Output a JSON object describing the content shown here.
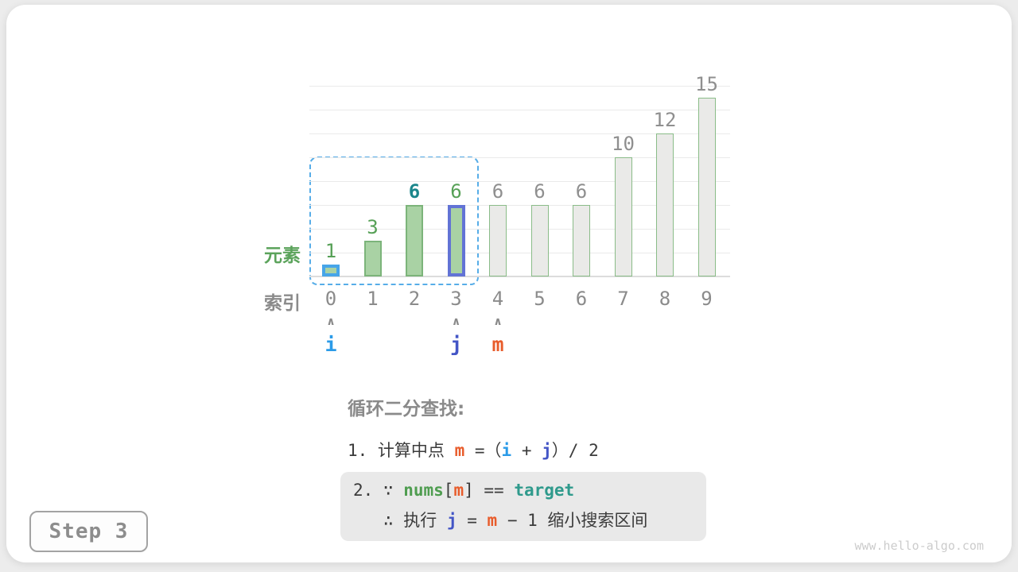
{
  "page": {
    "background_color": "#ececec",
    "card_color": "#ffffff",
    "step_badge": "Step 3",
    "watermark": "www.hello-algo.com"
  },
  "chart_data": {
    "type": "bar",
    "title": "",
    "categories": [
      "0",
      "1",
      "2",
      "3",
      "4",
      "5",
      "6",
      "7",
      "8",
      "9"
    ],
    "values": [
      1,
      3,
      6,
      6,
      6,
      6,
      6,
      10,
      12,
      15
    ],
    "bar_styles": [
      "hl-i",
      "",
      "",
      "hl-j",
      "gray",
      "gray",
      "gray",
      "gray",
      "gray",
      "gray"
    ],
    "value_label_styles": [
      "green",
      "green",
      "teal",
      "green",
      "",
      "",
      "",
      "",
      "",
      ""
    ],
    "row_label_elements": "元素",
    "row_label_index": "索引",
    "ylim": [
      0,
      16
    ],
    "gridline_step": 2,
    "grid": true,
    "legend": false,
    "search_range": {
      "from_index": 0,
      "to_index": 3,
      "style": "dashed-blue-rounded"
    }
  },
  "pointers": {
    "caret": "∧",
    "items": [
      {
        "label": "i",
        "index": 0,
        "color": "#2b9be8"
      },
      {
        "label": "j",
        "index": 3,
        "color": "#4355c6"
      },
      {
        "label": "m",
        "index": 4,
        "color": "#e85c2b"
      }
    ]
  },
  "annotation": {
    "heading": "循环二分查找:",
    "step1": {
      "prefix": "1. 计算中点 ",
      "m": "m",
      "eq_open": " =（",
      "i": "i",
      "plus": " + ",
      "j": "j",
      "close": "）/ 2"
    },
    "step2": {
      "line1": {
        "prefix": "2. ∵ ",
        "nums": "nums",
        "bracket_open": "[",
        "m": "m",
        "bracket_close": "] == ",
        "target": "target"
      },
      "line2": {
        "prefix": "∴ 执行 ",
        "j": "j",
        "eq": " = ",
        "m": "m",
        "suffix": " − 1 缩小搜索区间"
      }
    }
  },
  "colors": {
    "bar_green_fill": "#a9d2a4",
    "bar_green_border": "#7cb47a",
    "bar_gray_fill": "#eaeae8",
    "bar_gray_border": "#8abc88",
    "highlight_i_border": "#47a5e8",
    "highlight_j_border": "#6273d5",
    "dashed_range": "#57ade8",
    "label_green": "#56a056",
    "label_teal": "#1b868b",
    "label_gray": "#8f8f8f",
    "text_dark": "#3b3b3b",
    "token_orange_m": "#e85c2b",
    "token_blue_i": "#2b9be8",
    "token_indigo_j": "#4355c6",
    "token_green_nums": "#4f9d50",
    "token_teal_target": "#2f9a8c",
    "step2_box_bg": "#e9e9e9"
  }
}
